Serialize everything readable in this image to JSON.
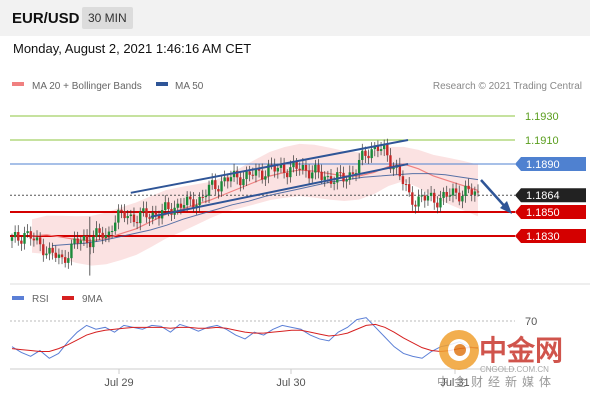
{
  "header": {
    "pair": "EUR/USD",
    "timeframe": "30 MIN"
  },
  "date_line": "Monday, August 2, 2021 1:46:16 AM CET",
  "legend": {
    "ma20": "MA 20 + Bollinger Bands",
    "ma50": "MA 50"
  },
  "credit": "Research © 2021 Trading Central",
  "colors": {
    "ma20": "#f08080",
    "ma50": "#2f5597",
    "band": "#f9d6d6",
    "resistance": "#8dc63f",
    "blue_level": "#4f81d0",
    "red_level": "#d40000",
    "price_bg": "#222222",
    "rsi": "#5b7fd6",
    "ma9": "#d62020"
  },
  "levels": [
    {
      "label": "1.1930",
      "style": "green"
    },
    {
      "label": "1.1910",
      "style": "green"
    },
    {
      "label": "1.1890",
      "style": "blue"
    },
    {
      "label": "1.1864",
      "style": "price"
    },
    {
      "label": "1.1850",
      "style": "red"
    },
    {
      "label": "1.1830",
      "style": "red"
    }
  ],
  "rsi_panel": {
    "rsi_label": "RSI",
    "ma_label": "9MA",
    "level_label": "70"
  },
  "x_axis": {
    "ticks": [
      "Jul 29",
      "Jul 30",
      "Jul 31"
    ]
  },
  "watermark": {
    "brand": "中金网",
    "site": "CNGOLD.COM.CN",
    "slogan": "中金财经新媒体"
  },
  "chart_data": [
    {
      "type": "candlestick",
      "title": "EUR/USD",
      "timeframe": "30 MIN",
      "x_ticks": [
        "Jul 29",
        "Jul 30",
        "Jul 31"
      ],
      "ylim": [
        1.1795,
        1.1945
      ],
      "levels": [
        1.193,
        1.191,
        1.189,
        1.1864,
        1.185,
        1.183
      ],
      "current_price": 1.1864,
      "close_path": [
        1.1826,
        1.1828,
        1.1833,
        1.1829,
        1.1823,
        1.1821,
        1.1816,
        1.1813,
        1.1809,
        1.1818,
        1.1824,
        1.1826,
        1.1827,
        1.1829,
        1.1832,
        1.1828,
        1.1842,
        1.1846,
        1.1848,
        1.1846,
        1.1845,
        1.1847,
        1.1848,
        1.1849,
        1.185,
        1.1852,
        1.1855,
        1.1857,
        1.1856,
        1.1859,
        1.1861,
        1.1867,
        1.1872,
        1.1874,
        1.1877,
        1.1878,
        1.188,
        1.1879,
        1.1881,
        1.1882,
        1.1884,
        1.1886,
        1.1885,
        1.1887,
        1.1885,
        1.1886,
        1.1887,
        1.1885,
        1.1883,
        1.188,
        1.1879,
        1.1878,
        1.1877,
        1.1879,
        1.1883,
        1.1889,
        1.1897,
        1.1902,
        1.1905,
        1.19,
        1.1892,
        1.1888,
        1.1876,
        1.1862,
        1.186,
        1.1862,
        1.1861,
        1.186,
        1.1862,
        1.1863,
        1.1865,
        1.1866,
        1.1867,
        1.1866,
        1.1864
      ],
      "ma20": [
        1.183,
        1.1831,
        1.1829,
        1.1827,
        1.1826,
        1.1828,
        1.1832,
        1.1836,
        1.1842,
        1.1848,
        1.1852,
        1.1856,
        1.186,
        1.1865,
        1.187,
        1.1875,
        1.188,
        1.1883,
        1.1885,
        1.1884,
        1.1882,
        1.188,
        1.188,
        1.1883,
        1.1888,
        1.189,
        1.1886,
        1.188,
        1.1876,
        1.1872,
        1.1868
      ],
      "ma50": [
        1.1822,
        1.1823,
        1.1824,
        1.1826,
        1.1829,
        1.1832,
        1.1835,
        1.1839,
        1.1844,
        1.1848,
        1.1852,
        1.1856,
        1.1859,
        1.1863,
        1.1866,
        1.1869,
        1.1872,
        1.1875,
        1.1877,
        1.1879,
        1.188,
        1.1881,
        1.1882,
        1.1882,
        1.1881,
        1.1879,
        1.1877
      ],
      "trendlines": [
        {
          "name": "channel-top",
          "points": [
            [
              0.3,
              1.1866
            ],
            [
              1.0,
              1.191
            ]
          ]
        },
        {
          "name": "channel-bottom",
          "points": [
            [
              0.35,
              1.1846
            ],
            [
              1.0,
              1.189
            ]
          ]
        }
      ]
    },
    {
      "type": "line",
      "title": "RSI",
      "series": [
        {
          "name": "RSI",
          "values": [
            40,
            34,
            30,
            36,
            28,
            33,
            45,
            55,
            62,
            58,
            60,
            55,
            62,
            60,
            58,
            62,
            61,
            55,
            63,
            60,
            56,
            60,
            62,
            58,
            52,
            48,
            55,
            52,
            58,
            62,
            60,
            58,
            52,
            48,
            46,
            55,
            60,
            68,
            70,
            60,
            50,
            40,
            33,
            30,
            28,
            35,
            40,
            42,
            45,
            40,
            38
          ]
        },
        {
          "name": "9MA",
          "values": [
            38,
            37,
            36,
            35,
            35,
            38,
            42,
            47,
            52,
            55,
            57,
            58,
            59,
            60,
            60,
            60,
            60,
            59,
            60,
            60,
            59,
            59,
            60,
            59,
            57,
            55,
            54,
            54,
            55,
            56,
            57,
            57,
            55,
            53,
            51,
            52,
            54,
            58,
            62,
            63,
            60,
            55,
            49,
            44,
            39,
            36,
            35,
            36,
            38,
            39,
            39
          ]
        }
      ],
      "reference_lines": [
        70
      ],
      "ylim": [
        20,
        80
      ]
    }
  ]
}
